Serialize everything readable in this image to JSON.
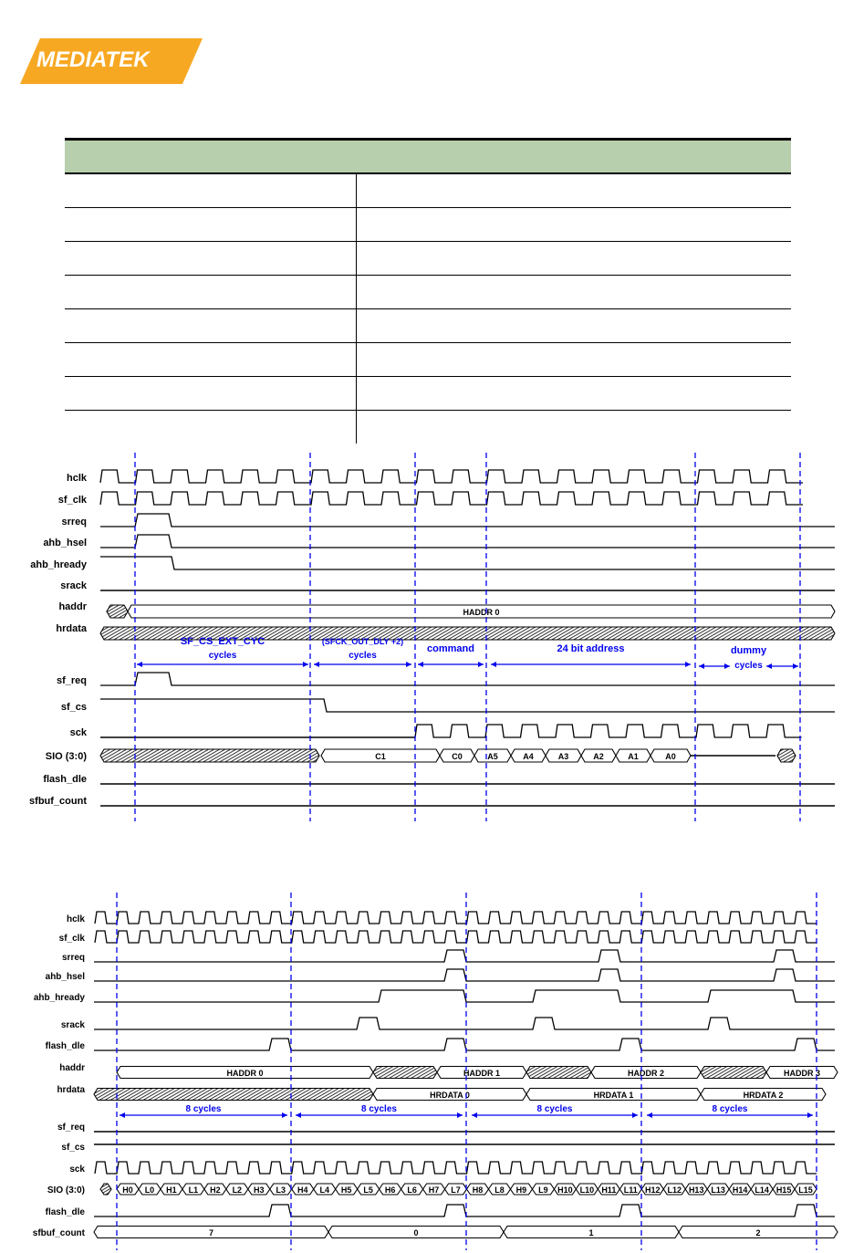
{
  "logo": {
    "text": "MEDIATEK",
    "color": "#f7a823"
  },
  "table": {
    "rows": 8,
    "header_color": "#b7cfac"
  },
  "diagram1": {
    "signals": [
      "hclk",
      "sf_clk",
      "srreq",
      "ahb_hsel",
      "ahb_hready",
      "srack",
      "haddr",
      "hrdata",
      "sf_req",
      "sf_cs",
      "sck",
      "SIO (3:0)",
      "flash_dle",
      "sfbuf_count"
    ],
    "haddr_label": "HADDR 0",
    "annotations": [
      {
        "line1": "SF_CS_EXT_CYC",
        "line2": "cycles"
      },
      {
        "line1": "(SFCK_OUT_DLY +2)",
        "line2": "cycles"
      },
      {
        "line1": "command",
        "line2": ""
      },
      {
        "line1": "24 bit address",
        "line2": ""
      },
      {
        "line1": "dummy",
        "line2": "cycles"
      }
    ],
    "sio": [
      "C1",
      "C0",
      "A5",
      "A4",
      "A3",
      "A2",
      "A1",
      "A0"
    ]
  },
  "diagram2": {
    "signals": [
      "hclk",
      "sf_clk",
      "srreq",
      "ahb_hsel",
      "ahb_hready",
      "srack",
      "flash_dle",
      "haddr",
      "hrdata",
      "sf_req",
      "sf_cs",
      "sck",
      "SIO (3:0)",
      "flash_dle",
      "sfbuf_count"
    ],
    "haddr": [
      "HADDR 0",
      "HADDR 1",
      "HADDR 2",
      "HADDR 3"
    ],
    "hrdata": [
      "HRDATA 0",
      "HRDATA 1",
      "HRDATA 2"
    ],
    "cycles_label": "8 cycles",
    "sio": [
      "H0",
      "L0",
      "H1",
      "L1",
      "H2",
      "L2",
      "H3",
      "L3",
      "H4",
      "L4",
      "H5",
      "L5",
      "H6",
      "L6",
      "H7",
      "L7",
      "H8",
      "L8",
      "H9",
      "L9",
      "H10",
      "L10",
      "H11",
      "L11",
      "H12",
      "L12",
      "H13",
      "L13",
      "H14",
      "L14",
      "H15",
      "L15"
    ],
    "sfbuf_count": [
      "7",
      "0",
      "1",
      "2"
    ]
  },
  "colors": {
    "marker": "#0000ee",
    "annotation": "#0000ee"
  }
}
